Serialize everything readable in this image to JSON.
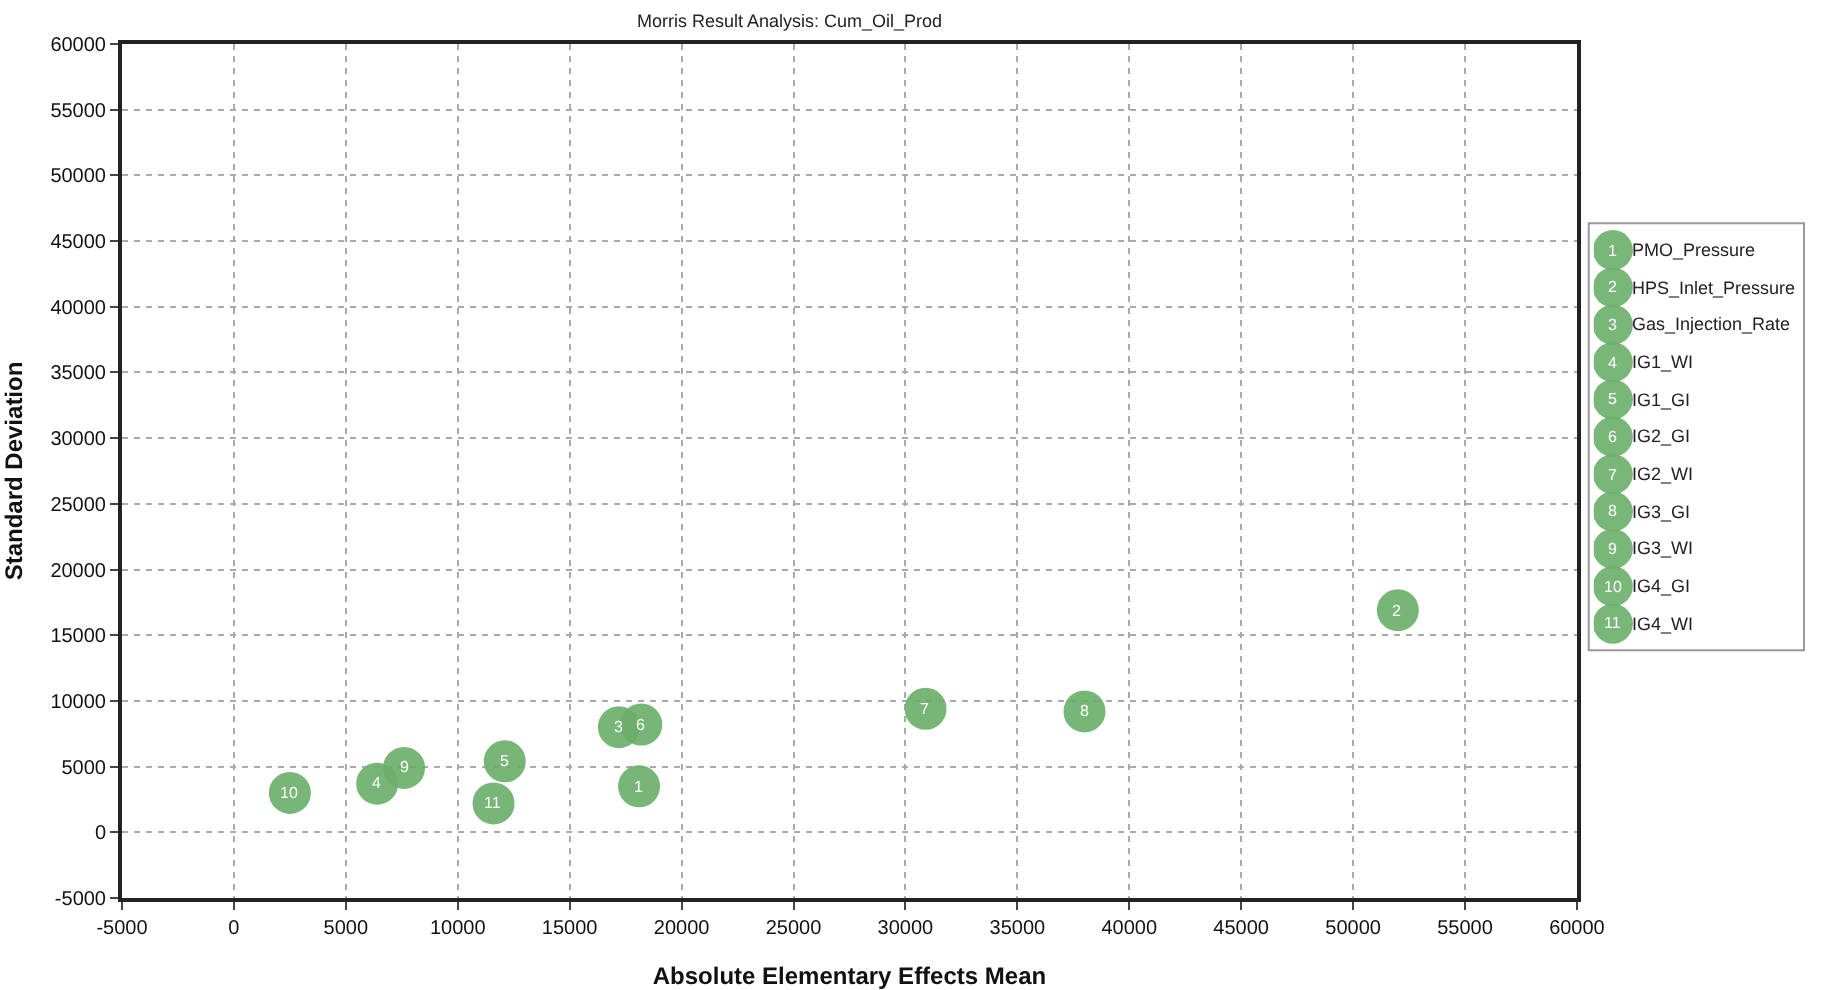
{
  "chart_data": {
    "type": "scatter",
    "title": "Morris Result Analysis: Cum_Oil_Prod",
    "xlabel": "Absolute Elementary Effects Mean",
    "ylabel": "Standard Deviation",
    "series": [
      {
        "name": "PMO_Pressure",
        "color": "#6aaf6a",
        "x": [
          18100
        ],
        "values": [
          3500
        ]
      },
      {
        "name": "HPS_Inlet_Pressure",
        "color": "#6aaf6a",
        "x": [
          52000
        ],
        "values": [
          16900
        ]
      },
      {
        "name": "Gas_Injection_Rate",
        "color": "#6aaf6a",
        "x": [
          17200
        ],
        "values": [
          8000
        ]
      },
      {
        "name": "IG1_WI",
        "color": "#6aaf6a",
        "x": [
          6400
        ],
        "values": [
          3700
        ]
      },
      {
        "name": "IG1_GI",
        "color": "#6aaf6a",
        "x": [
          12100
        ],
        "values": [
          5400
        ]
      },
      {
        "name": "IG2_GI",
        "color": "#6aaf6a",
        "x": [
          18200
        ],
        "values": [
          8200
        ]
      },
      {
        "name": "IG2_WI",
        "color": "#6aaf6a",
        "x": [
          30900
        ],
        "values": [
          9400
        ]
      },
      {
        "name": "IG3_GI",
        "color": "#6aaf6a",
        "x": [
          38000
        ],
        "values": [
          9200
        ]
      },
      {
        "name": "IG3_WI",
        "color": "#6aaf6a",
        "x": [
          7600
        ],
        "values": [
          4900
        ]
      },
      {
        "name": "IG4_GI",
        "color": "#6aaf6a",
        "x": [
          2500
        ],
        "values": [
          3000
        ]
      },
      {
        "name": "IG4_WI",
        "color": "#6aaf6a",
        "x": [
          11600
        ],
        "values": [
          2200
        ]
      }
    ],
    "annotations": [
      {
        "text": "1",
        "x": 18100,
        "y": 3500
      },
      {
        "text": "2",
        "x": 52000,
        "y": 16900
      },
      {
        "text": "3",
        "x": 17200,
        "y": 8000
      },
      {
        "text": "4",
        "x": 6400,
        "y": 3700
      },
      {
        "text": "5",
        "x": 12100,
        "y": 5400
      },
      {
        "text": "6",
        "x": 18200,
        "y": 8200
      },
      {
        "text": "7",
        "x": 30900,
        "y": 9400
      },
      {
        "text": "8",
        "x": 38000,
        "y": 9200
      },
      {
        "text": "9",
        "x": 7600,
        "y": 4900
      },
      {
        "text": "10",
        "x": 2500,
        "y": 3000
      },
      {
        "text": "11",
        "x": 11600,
        "y": 2200
      }
    ],
    "xlim": [
      -5000,
      60000
    ],
    "ylim": [
      -5000,
      60000
    ],
    "xticks": [
      -5000,
      0,
      5000,
      10000,
      15000,
      20000,
      25000,
      30000,
      35000,
      40000,
      45000,
      50000,
      55000,
      60000
    ],
    "yticks": [
      -5000,
      0,
      5000,
      10000,
      15000,
      20000,
      25000,
      30000,
      35000,
      40000,
      45000,
      50000,
      55000,
      60000
    ],
    "grid": true,
    "legend": "right",
    "marker": "circle"
  }
}
